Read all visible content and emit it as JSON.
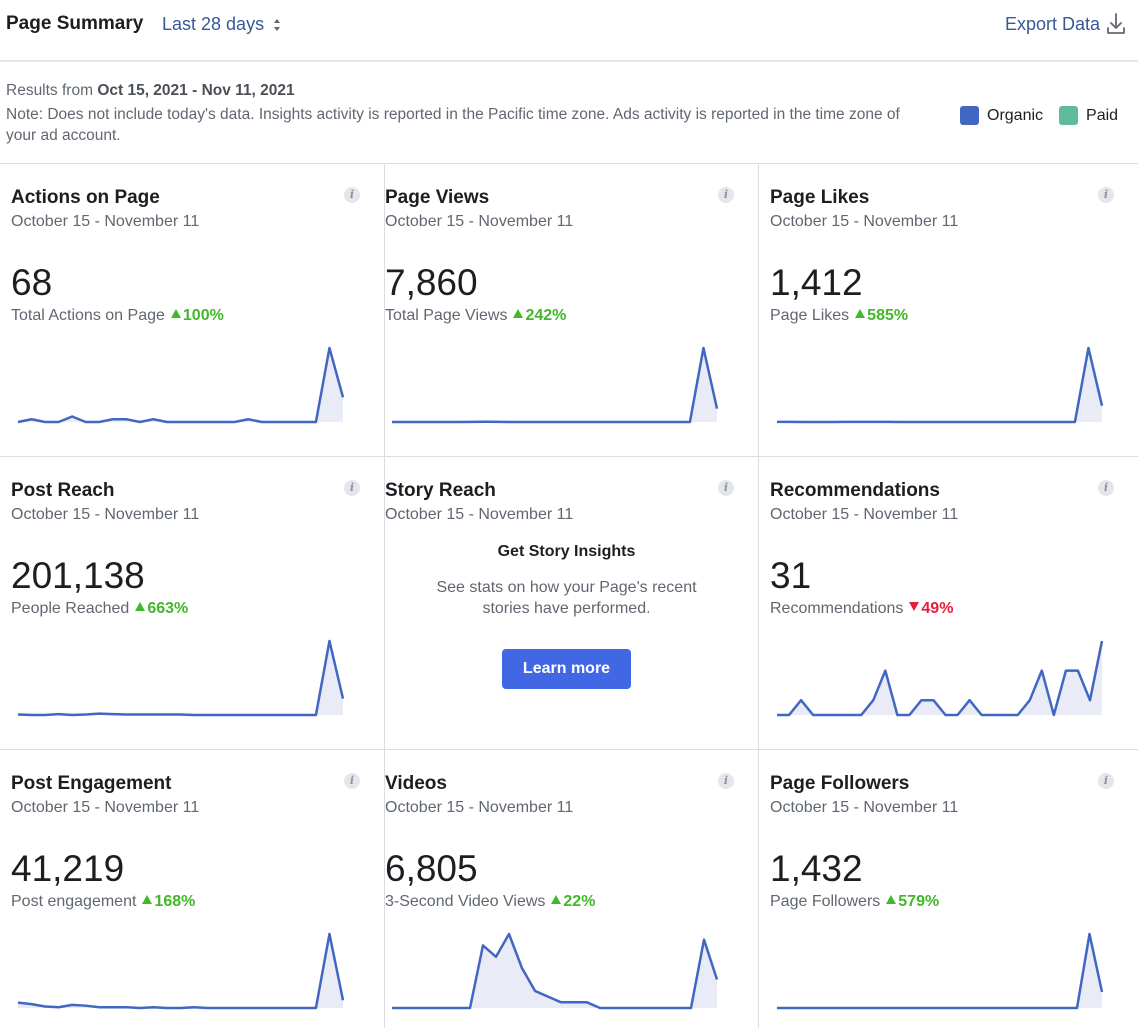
{
  "header": {
    "title": "Page Summary",
    "range_label": "Last 28 days",
    "export_label": "Export Data"
  },
  "info": {
    "results_prefix": "Results from",
    "results_range": "Oct 15, 2021 - Nov 11, 2021",
    "note": "Note: Does not include today's data. Insights activity is reported in the Pacific time zone. Ads activity is reported in the time zone of your ad account."
  },
  "legend": [
    {
      "label": "Organic",
      "color": "#4267c2"
    },
    {
      "label": "Paid",
      "color": "#5ebc9a"
    }
  ],
  "colors": {
    "line": "#4267c2",
    "fill": "#e9ebf7",
    "up": "#42b72a",
    "down": "#e41e3f",
    "button": "#4267e4"
  },
  "cards": [
    {
      "title": "Actions on Page",
      "date": "October 15 - November 11",
      "value": "68",
      "metric": "Total Actions on Page",
      "change": "100%",
      "direction": "up",
      "series": [
        1,
        2,
        1,
        1,
        3,
        1,
        1,
        2,
        2,
        1,
        2,
        1,
        1,
        1,
        1,
        1,
        1,
        2,
        1,
        1,
        1,
        1,
        1,
        28,
        10
      ]
    },
    {
      "title": "Page Views",
      "date": "October 15 - November 11",
      "value": "7,860",
      "metric": "Total Page Views",
      "change": "242%",
      "direction": "up",
      "series": [
        60,
        60,
        60,
        60,
        60,
        60,
        65,
        70,
        65,
        60,
        60,
        60,
        60,
        60,
        60,
        60,
        60,
        60,
        60,
        60,
        60,
        60,
        60,
        3600,
        700
      ]
    },
    {
      "title": "Page Likes",
      "date": "October 15 - November 11",
      "value": "1,412",
      "metric": "Page Likes",
      "change": "585%",
      "direction": "up",
      "series": [
        10,
        10,
        8,
        8,
        8,
        10,
        10,
        10,
        10,
        8,
        8,
        8,
        8,
        8,
        8,
        8,
        8,
        8,
        8,
        8,
        8,
        8,
        8,
        880,
        200
      ]
    },
    {
      "title": "Post Reach",
      "date": "October 15 - November 11",
      "value": "201,138",
      "metric": "People Reached",
      "change": "663%",
      "direction": "up",
      "series": [
        2000,
        1500,
        1500,
        2500,
        1500,
        2000,
        3000,
        2500,
        2000,
        2000,
        2000,
        2000,
        2000,
        1500,
        1500,
        1500,
        1500,
        1500,
        1500,
        1500,
        1500,
        1500,
        1500,
        85000,
        20000
      ]
    },
    {
      "title": "Story Reach",
      "date": "October 15 - November 11",
      "story_heading": "Get Story Insights",
      "story_desc": "See stats on how your Page's recent stories have performed.",
      "button": "Learn more"
    },
    {
      "title": "Recommendations",
      "date": "October 15 - November 11",
      "value": "31",
      "metric": "Recommendations",
      "change": "49%",
      "direction": "down",
      "series": [
        0,
        0,
        1,
        0,
        0,
        0,
        0,
        0,
        1,
        3,
        0,
        0,
        1,
        1,
        0,
        0,
        1,
        0,
        0,
        0,
        0,
        1,
        3,
        0,
        3,
        3,
        1,
        5
      ]
    },
    {
      "title": "Post Engagement",
      "date": "October 15 - November 11",
      "value": "41,219",
      "metric": "Post engagement",
      "change": "168%",
      "direction": "up",
      "series": [
        900,
        700,
        400,
        300,
        600,
        500,
        300,
        300,
        300,
        200,
        300,
        200,
        200,
        300,
        200,
        200,
        200,
        200,
        200,
        200,
        200,
        200,
        200,
        9800,
        1200
      ]
    },
    {
      "title": "Videos",
      "date": "October 15 - November 11",
      "value": "6,805",
      "metric": "3-Second Video Views",
      "change": "22%",
      "direction": "up",
      "series": [
        10,
        10,
        10,
        10,
        10,
        10,
        10,
        120,
        100,
        140,
        80,
        40,
        30,
        20,
        20,
        20,
        10,
        10,
        10,
        10,
        10,
        10,
        10,
        10,
        130,
        60
      ]
    },
    {
      "title": "Page Followers",
      "date": "October 15 - November 11",
      "value": "1,432",
      "metric": "Page Followers",
      "change": "579%",
      "direction": "up",
      "series": [
        10,
        10,
        10,
        10,
        10,
        10,
        10,
        10,
        10,
        10,
        10,
        10,
        10,
        10,
        10,
        10,
        10,
        10,
        10,
        10,
        10,
        10,
        10,
        10,
        10,
        520,
        120
      ]
    }
  ]
}
